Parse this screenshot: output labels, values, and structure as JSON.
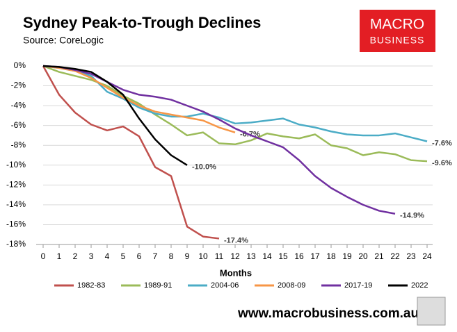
{
  "chart_data": {
    "type": "line",
    "title": "Sydney Peak-to-Trough Declines",
    "subtitle": "Source: CoreLogic",
    "xlabel": "Months",
    "logo": [
      "MACRO",
      "BUSINESS"
    ],
    "footer": "www.macrobusiness.com.au",
    "xlim": [
      0,
      24
    ],
    "xticks": [
      0,
      1,
      2,
      3,
      4,
      5,
      6,
      7,
      8,
      9,
      10,
      11,
      12,
      13,
      14,
      15,
      16,
      17,
      18,
      19,
      20,
      21,
      22,
      23,
      24
    ],
    "ylim": [
      -18,
      0
    ],
    "yticks": [
      {
        "value": 0,
        "label": "0%"
      },
      {
        "value": -2,
        "label": "-2%"
      },
      {
        "value": -4,
        "label": "-4%"
      },
      {
        "value": -6,
        "label": "-6%"
      },
      {
        "value": -8,
        "label": "-8%"
      },
      {
        "value": -10,
        "label": "-10%"
      },
      {
        "value": -12,
        "label": "-12%"
      },
      {
        "value": -14,
        "label": "-14%"
      },
      {
        "value": -16,
        "label": "-16%"
      },
      {
        "value": -18,
        "label": "-18%"
      }
    ],
    "grid": true,
    "legend": "bottom",
    "series": [
      {
        "name": "1982-83",
        "color": "#c0504d",
        "x": [
          0,
          1,
          2,
          3,
          4,
          5,
          6,
          7,
          8,
          9,
          10,
          11
        ],
        "values": [
          0,
          -2.9,
          -4.7,
          -5.9,
          -6.5,
          -6.1,
          -7.1,
          -10.2,
          -11.1,
          -16.2,
          -17.2,
          -17.4
        ],
        "value_labels": [
          null,
          null,
          null,
          null,
          null,
          null,
          null,
          null,
          null,
          null,
          null,
          "-17.4%"
        ]
      },
      {
        "name": "1989-91",
        "color": "#9bbb59",
        "x": [
          0,
          1,
          2,
          3,
          4,
          5,
          6,
          7,
          8,
          9,
          10,
          11,
          12,
          13,
          14,
          15,
          16,
          17,
          18,
          19,
          20,
          21,
          22,
          23,
          24
        ],
        "values": [
          0,
          -0.6,
          -1.0,
          -1.4,
          -2.0,
          -3.0,
          -3.8,
          -4.9,
          -5.9,
          -7.0,
          -6.7,
          -7.8,
          -7.9,
          -7.5,
          -6.8,
          -7.1,
          -7.3,
          -6.9,
          -8.0,
          -8.3,
          -9.0,
          -8.7,
          -8.9,
          -9.5,
          -9.6
        ],
        "value_labels": [
          null,
          null,
          null,
          null,
          null,
          null,
          null,
          null,
          null,
          null,
          null,
          null,
          null,
          null,
          null,
          null,
          null,
          null,
          null,
          null,
          null,
          null,
          null,
          null,
          "-9.6%"
        ]
      },
      {
        "name": "2004-06",
        "color": "#4bacc6",
        "x": [
          0,
          1,
          2,
          3,
          4,
          5,
          6,
          7,
          8,
          9,
          10,
          11,
          12,
          13,
          14,
          15,
          16,
          17,
          18,
          19,
          20,
          21,
          22,
          23,
          24
        ],
        "values": [
          0,
          -0.2,
          -0.5,
          -1.0,
          -2.6,
          -3.3,
          -4.2,
          -4.8,
          -5.1,
          -5.1,
          -4.8,
          -5.2,
          -5.8,
          -5.7,
          -5.5,
          -5.3,
          -5.9,
          -6.2,
          -6.6,
          -6.9,
          -7.0,
          -7.0,
          -6.8,
          -7.2,
          -7.6
        ],
        "value_labels": [
          null,
          null,
          null,
          null,
          null,
          null,
          null,
          null,
          null,
          null,
          null,
          null,
          null,
          null,
          null,
          null,
          null,
          null,
          null,
          null,
          null,
          null,
          null,
          null,
          "-7.6%"
        ]
      },
      {
        "name": "2008-09",
        "color": "#f79646",
        "x": [
          0,
          1,
          2,
          3,
          4,
          5,
          6,
          7,
          8,
          9,
          10,
          11,
          12
        ],
        "values": [
          0,
          -0.2,
          -0.5,
          -1.2,
          -2.2,
          -3.2,
          -4.0,
          -4.6,
          -4.9,
          -5.2,
          -5.5,
          -6.2,
          -6.7
        ],
        "value_labels": [
          null,
          null,
          null,
          null,
          null,
          null,
          null,
          null,
          null,
          null,
          null,
          null,
          "-6.7%"
        ]
      },
      {
        "name": "2017-19",
        "color": "#7030a0",
        "x": [
          0,
          1,
          2,
          3,
          4,
          5,
          6,
          7,
          8,
          9,
          10,
          11,
          12,
          13,
          14,
          15,
          16,
          17,
          18,
          19,
          20,
          21,
          22
        ],
        "values": [
          0,
          -0.1,
          -0.4,
          -0.8,
          -1.6,
          -2.4,
          -2.9,
          -3.1,
          -3.4,
          -4.0,
          -4.6,
          -5.4,
          -6.3,
          -7.0,
          -7.6,
          -8.2,
          -9.5,
          -11.1,
          -12.3,
          -13.2,
          -14.0,
          -14.6,
          -14.9
        ],
        "value_labels": [
          null,
          null,
          null,
          null,
          null,
          null,
          null,
          null,
          null,
          null,
          null,
          null,
          null,
          null,
          null,
          null,
          null,
          null,
          null,
          null,
          null,
          null,
          "-14.9%"
        ]
      },
      {
        "name": "2022",
        "color": "#000000",
        "x": [
          0,
          1,
          2,
          3,
          4,
          5,
          6,
          7,
          8,
          9
        ],
        "values": [
          0,
          -0.1,
          -0.3,
          -0.6,
          -1.6,
          -2.9,
          -5.3,
          -7.4,
          -9.0,
          -10.0
        ],
        "value_labels": [
          null,
          null,
          null,
          null,
          null,
          null,
          null,
          null,
          null,
          "-10.0%"
        ]
      }
    ]
  }
}
